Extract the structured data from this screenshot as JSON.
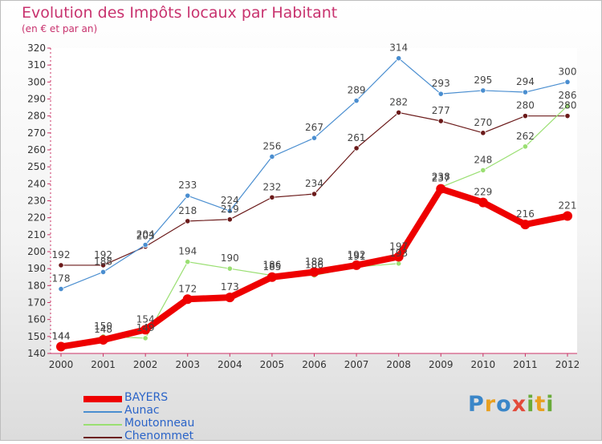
{
  "title": "Evolution des Impôts locaux par Habitant",
  "subtitle": "(en € et par an)",
  "brand": {
    "letters": [
      {
        "char": "P",
        "color": "#3a86c8"
      },
      {
        "char": "r",
        "color": "#e8a020"
      },
      {
        "char": "o",
        "color": "#3a86c8"
      },
      {
        "char": "x",
        "color": "#e34a3a"
      },
      {
        "char": "i",
        "color": "#6aab3a"
      },
      {
        "char": "t",
        "color": "#e8a020"
      },
      {
        "char": "i",
        "color": "#6aab3a"
      }
    ]
  },
  "chart_data": {
    "type": "line",
    "title": "Evolution des Impôts locaux par Habitant",
    "subtitle": "(en € et par an)",
    "x": [
      2000,
      2001,
      2002,
      2003,
      2004,
      2005,
      2006,
      2007,
      2008,
      2009,
      2010,
      2011,
      2012
    ],
    "ylim": [
      140,
      320
    ],
    "ytick_step": 10,
    "grid": false,
    "legend_placement": "bottom-left",
    "series": [
      {
        "name": "Chenommet",
        "color": "#6b1a1a",
        "values": [
          192,
          192,
          203,
          218,
          219,
          232,
          234,
          261,
          282,
          277,
          270,
          280,
          280
        ]
      },
      {
        "name": "Aunac",
        "color": "#4a8ed0",
        "values": [
          178,
          188,
          204,
          233,
          224,
          256,
          267,
          289,
          314,
          293,
          295,
          294,
          300
        ]
      },
      {
        "name": "Moutonneau",
        "color": "#9adf72",
        "values": [
          144,
          150,
          149,
          194,
          190,
          186,
          186,
          191,
          193,
          238,
          248,
          262,
          286
        ]
      },
      {
        "name": "BAYERS",
        "color": "#ee0000",
        "values": [
          144,
          148,
          154,
          172,
          173,
          185,
          188,
          192,
          197,
          237,
          229,
          216,
          221
        ]
      }
    ],
    "legend_order": [
      "BAYERS",
      "Aunac",
      "Moutonneau",
      "Chenommet"
    ]
  }
}
